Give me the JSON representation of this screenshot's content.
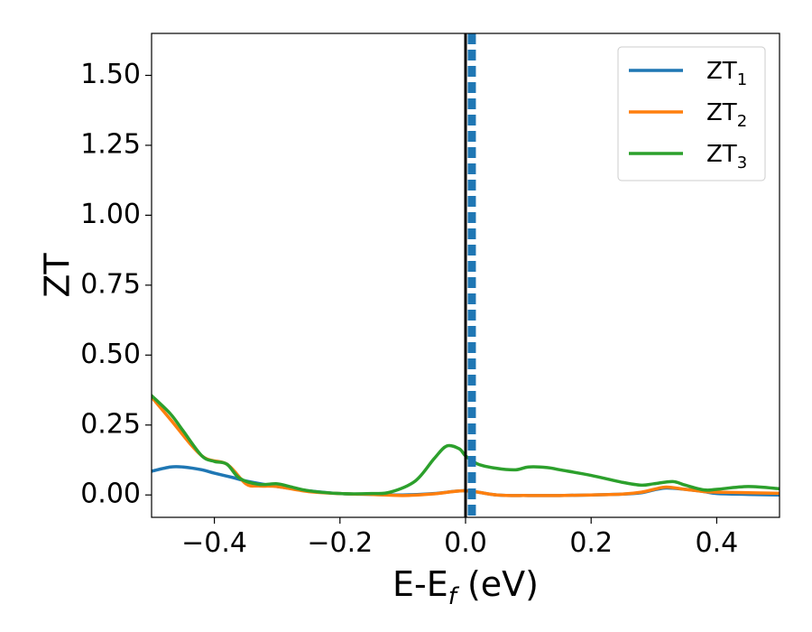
{
  "chart_data": {
    "type": "line",
    "xlabel": "E-E",
    "xlabel_sub": "f",
    "xlabel_unit": " (eV)",
    "ylabel": "ZT",
    "xlim": [
      -0.5,
      0.5
    ],
    "ylim": [
      -0.08,
      1.65
    ],
    "xticks": [
      -0.4,
      -0.2,
      0.0,
      0.2,
      0.4
    ],
    "xtick_labels": [
      "−0.4",
      "−0.2",
      "0.0",
      "0.2",
      "0.4"
    ],
    "yticks": [
      0.0,
      0.25,
      0.5,
      0.75,
      1.0,
      1.25,
      1.5
    ],
    "ytick_labels": [
      "0.00",
      "0.25",
      "0.50",
      "0.75",
      "1.00",
      "1.25",
      "1.50"
    ],
    "grid": false,
    "legend_position": "top-right",
    "vertical_lines": [
      {
        "x": 0.0,
        "style": "solid",
        "color": "#000000"
      },
      {
        "x": 0.01,
        "style": "dashed",
        "color": "#1f77b4"
      }
    ],
    "series": [
      {
        "name": "ZT",
        "name_sub": "1",
        "color": "#1f77b4",
        "x": [
          -0.5,
          -0.47,
          -0.45,
          -0.42,
          -0.4,
          -0.37,
          -0.35,
          -0.3,
          -0.25,
          -0.2,
          -0.15,
          -0.1,
          -0.05,
          0.0,
          0.05,
          0.1,
          0.15,
          0.2,
          0.25,
          0.28,
          0.3,
          0.32,
          0.35,
          0.38,
          0.4,
          0.45,
          0.5
        ],
        "values": [
          0.085,
          0.1,
          0.1,
          0.09,
          0.078,
          0.062,
          0.05,
          0.03,
          0.015,
          0.005,
          0.002,
          0.0,
          0.005,
          0.015,
          0.0,
          -0.002,
          -0.002,
          0.0,
          0.003,
          0.008,
          0.018,
          0.025,
          0.02,
          0.012,
          0.005,
          0.002,
          0.0
        ]
      },
      {
        "name": "ZT",
        "name_sub": "2",
        "color": "#ff7f0e",
        "x": [
          -0.5,
          -0.47,
          -0.42,
          -0.38,
          -0.35,
          -0.33,
          -0.3,
          -0.25,
          -0.2,
          -0.15,
          -0.1,
          -0.05,
          0.0,
          0.05,
          0.1,
          0.15,
          0.2,
          0.25,
          0.28,
          0.3,
          0.32,
          0.35,
          0.38,
          0.4,
          0.45,
          0.5
        ],
        "values": [
          0.35,
          0.27,
          0.14,
          0.11,
          0.04,
          0.032,
          0.03,
          0.012,
          0.005,
          0.002,
          -0.002,
          0.004,
          0.015,
          0.0,
          -0.002,
          -0.002,
          0.0,
          0.003,
          0.01,
          0.02,
          0.028,
          0.02,
          0.012,
          0.01,
          0.008,
          0.006
        ]
      },
      {
        "name": "ZT",
        "name_sub": "3",
        "color": "#2ca02c",
        "x": [
          -0.5,
          -0.47,
          -0.45,
          -0.42,
          -0.4,
          -0.38,
          -0.36,
          -0.33,
          -0.3,
          -0.28,
          -0.25,
          -0.2,
          -0.15,
          -0.12,
          -0.08,
          -0.05,
          -0.03,
          -0.01,
          0.0,
          0.02,
          0.05,
          0.08,
          0.1,
          0.13,
          0.15,
          0.2,
          0.25,
          0.28,
          0.3,
          0.33,
          0.35,
          0.38,
          0.4,
          0.45,
          0.5
        ],
        "values": [
          0.355,
          0.29,
          0.23,
          0.14,
          0.12,
          0.11,
          0.06,
          0.038,
          0.04,
          0.03,
          0.015,
          0.005,
          0.005,
          0.01,
          0.05,
          0.13,
          0.175,
          0.165,
          0.14,
          0.11,
          0.095,
          0.09,
          0.1,
          0.098,
          0.09,
          0.07,
          0.045,
          0.035,
          0.04,
          0.048,
          0.035,
          0.018,
          0.02,
          0.03,
          0.022
        ]
      }
    ]
  }
}
